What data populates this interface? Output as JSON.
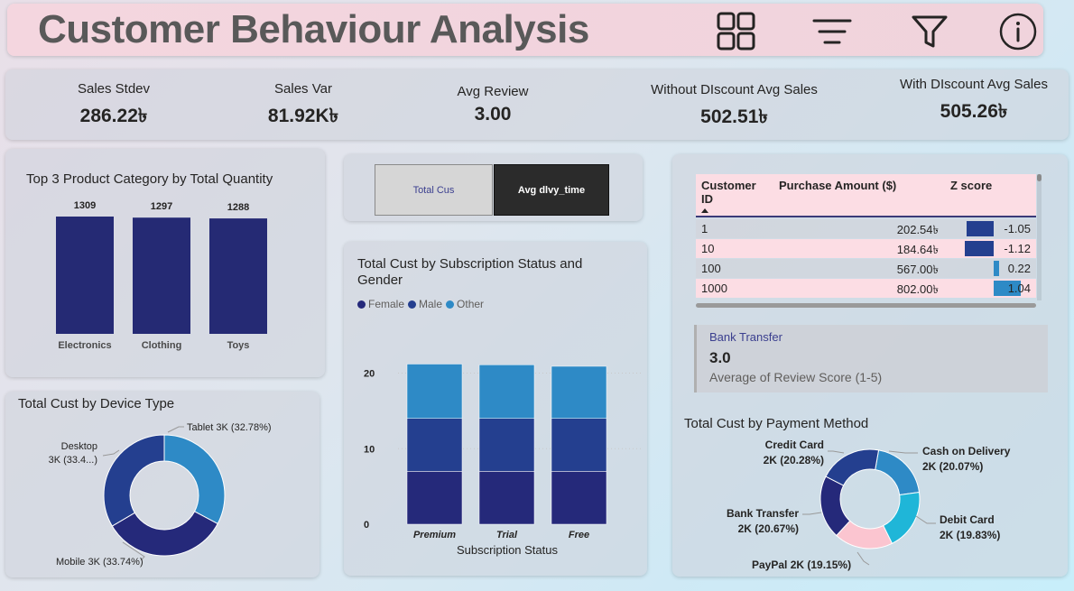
{
  "header": {
    "title": "Customer Behaviour Analysis",
    "icons": [
      "grid-icon",
      "sort-lines-icon",
      "filter-icon",
      "info-icon"
    ]
  },
  "kpis": [
    {
      "label": "Sales Stdev",
      "value": "286.22৳"
    },
    {
      "label": "Sales Var",
      "value": "81.92K৳"
    },
    {
      "label": "Avg Review",
      "value": "3.00"
    },
    {
      "label": "Without DIscount Avg Sales",
      "value": "502.51৳"
    },
    {
      "label": "With DIscount Avg Sales",
      "value": "505.26৳"
    }
  ],
  "top3": {
    "title": "Top 3 Product Category by Total Quantity",
    "color": "#252a74"
  },
  "buttons": {
    "total_cus": "Total Cus",
    "avg_dlvy": "Avg dlvy_time"
  },
  "table": {
    "headers": {
      "customer_id_line1": "Customer",
      "customer_id_line2": "ID",
      "purchase": "Purchase Amount ($)",
      "z": "Z score"
    },
    "rows": [
      {
        "id": "1",
        "amount": "202.54৳",
        "z": "-1.05",
        "zval": -1.05
      },
      {
        "id": "10",
        "amount": "184.64৳",
        "z": "-1.12",
        "zval": -1.12
      },
      {
        "id": "100",
        "amount": "567.00৳",
        "z": "0.22",
        "zval": 0.22
      },
      {
        "id": "1000",
        "amount": "802.00৳",
        "z": "1.04",
        "zval": 1.04
      }
    ]
  },
  "review_card": {
    "filter": "Bank Transfer",
    "value": "3.0",
    "caption": "Average of Review Score (1-5)"
  },
  "device": {
    "title": "Total Cust by Device Type"
  },
  "subscription": {
    "title_line1": "Total Cust by Subscription Status and",
    "title_line2": "Gender"
  },
  "payment": {
    "title": "Total Cust by Payment Method"
  },
  "chart_data": [
    {
      "id": "top3",
      "type": "bar",
      "title": "Top 3 Product Category by Total Quantity",
      "categories": [
        "Electronics",
        "Clothing",
        "Toys"
      ],
      "values": [
        1309,
        1297,
        1288
      ],
      "color": "#252a74"
    },
    {
      "id": "device",
      "type": "pie",
      "title": "Total Cust by Device Type",
      "labels": [
        "Tablet 3K (32.78%)",
        "Mobile 3K (33.74%)",
        "Desktop 3K (33.4...)"
      ],
      "values": [
        32.78,
        33.74,
        33.48
      ],
      "colors": [
        "#2e8ac6",
        "#25297a",
        "#243f8f"
      ]
    },
    {
      "id": "subscription",
      "type": "bar",
      "stacked": true,
      "title": "Total Cust by Subscription Status and Gender",
      "xlabel": "Subscription Status",
      "categories": [
        "Premium",
        "Trial",
        "Free"
      ],
      "y_ticks": [
        "0",
        "10",
        "20"
      ],
      "ylim": [
        0,
        24
      ],
      "legend_placement": "top-left",
      "series": [
        {
          "name": "Female",
          "values": [
            7,
            7,
            7
          ],
          "color": "#25297a"
        },
        {
          "name": "Male",
          "values": [
            7,
            7,
            7
          ],
          "color": "#243f8f"
        },
        {
          "name": "Other",
          "values": [
            7.2,
            7.1,
            6.9
          ],
          "color": "#2e8ac6"
        }
      ]
    },
    {
      "id": "payment",
      "type": "pie",
      "title": "Total Cust by Payment Method",
      "labels": [
        "Cash on Delivery 2K (20.07%)",
        "Debit Card 2K (19.83%)",
        "PayPal 2K (19.15%)",
        "Bank Transfer 2K (20.67%)",
        "Credit Card 2K (20.28%)"
      ],
      "label_lines": [
        [
          "Cash on Delivery",
          "2K (20.07%)"
        ],
        [
          "Debit Card",
          "2K (19.83%)"
        ],
        [
          "PayPal 2K (19.15%)"
        ],
        [
          "Bank Transfer",
          "2K (20.67%)"
        ],
        [
          "Credit Card",
          "2K (20.28%)"
        ]
      ],
      "values": [
        20.07,
        19.83,
        19.15,
        20.67,
        20.28
      ],
      "colors": [
        "#2e8ac6",
        "#1fb6d8",
        "#fbc5d0",
        "#25297a",
        "#243f8f"
      ]
    }
  ]
}
